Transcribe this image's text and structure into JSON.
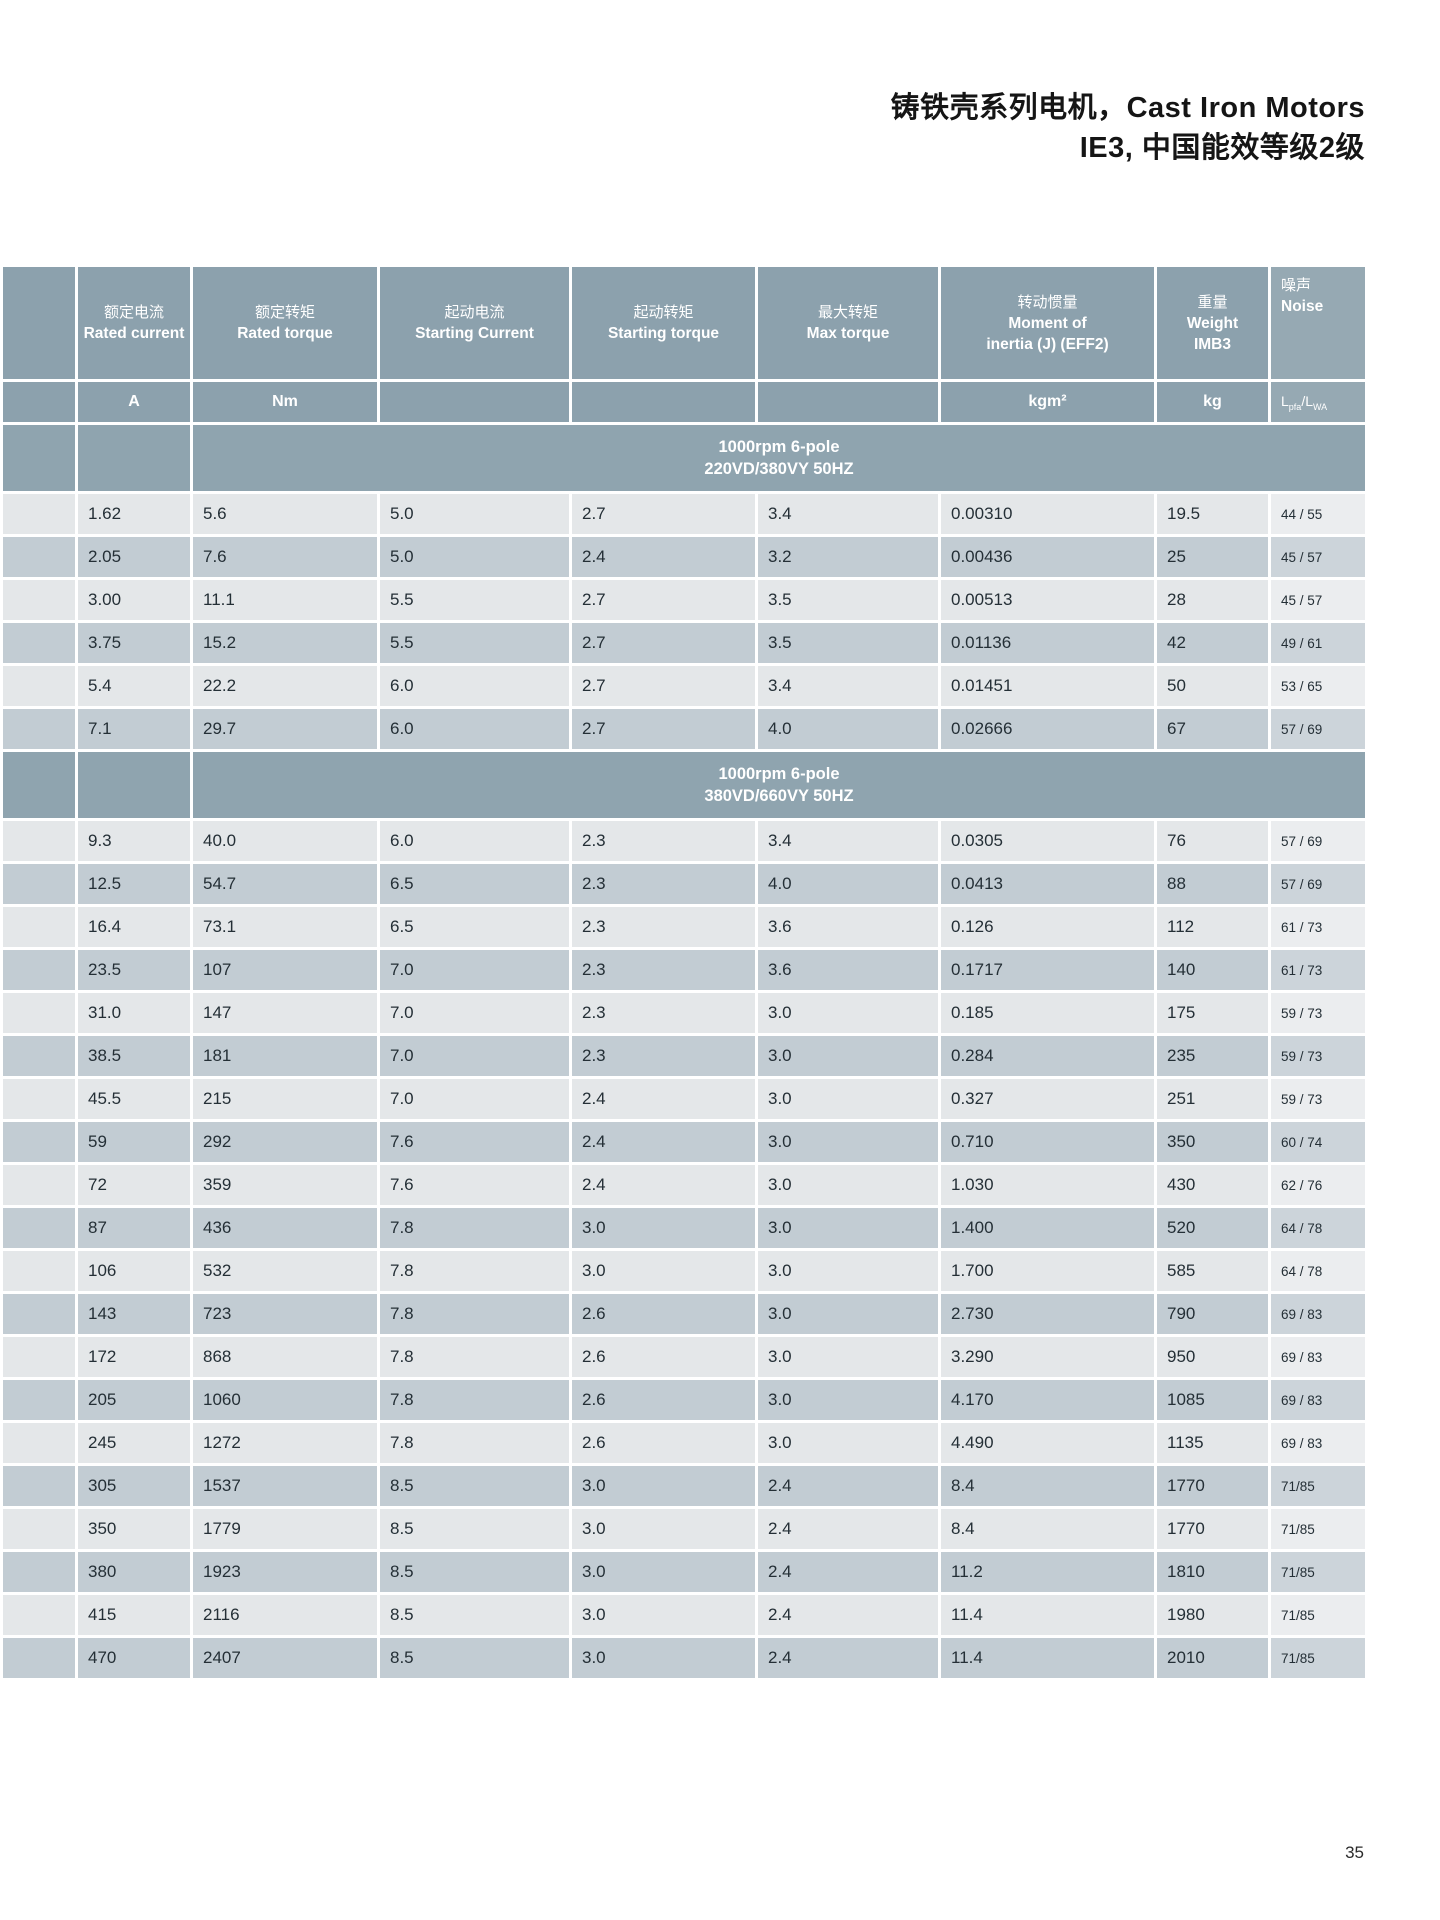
{
  "title": {
    "line1": "铸铁壳系列电机，Cast Iron Motors",
    "line2": "IE3, 中国能效等级2级"
  },
  "page_number": "35",
  "colors": {
    "header_bg": "#8CA1AD",
    "noise_header_bg": "#96A9B3",
    "section_band_bg": "#8FA4AF",
    "row_light": "#E4E7E9",
    "row_dark": "#C2CCD3",
    "text_dark": "#242F36",
    "header_text": "#FFFFFF"
  },
  "table": {
    "columns": [
      {
        "key": "frame",
        "zh": "",
        "en": "",
        "unit": ""
      },
      {
        "key": "rated-current",
        "zh": "额定电流",
        "en": "Rated current",
        "unit": "A"
      },
      {
        "key": "rated-torque",
        "zh": "额定转矩",
        "en": "Rated torque",
        "unit": "Nm"
      },
      {
        "key": "starting-current",
        "zh": "起动电流",
        "en": "Starting Current",
        "unit": ""
      },
      {
        "key": "starting-torque",
        "zh": "起动转矩",
        "en": "Starting torque",
        "unit": ""
      },
      {
        "key": "max-torque",
        "zh": "最大转矩",
        "en": "Max torque",
        "unit": ""
      },
      {
        "key": "moment-of-inertia",
        "zh": "转动惯量",
        "en": "Moment of",
        "en2": "inertia (J) (EFF2)",
        "unit": "kgm²"
      },
      {
        "key": "weight",
        "zh": "重量",
        "en": "Weight",
        "en2": "IMB3",
        "unit": "kg"
      },
      {
        "key": "noise",
        "zh": "噪声",
        "en": "Noise",
        "unit_parts": {
          "a": "L",
          "a_sub": "pfa",
          "slash": "/",
          "b": "L",
          "b_sub": "WA"
        }
      }
    ],
    "sections": [
      {
        "header_line1": "1000rpm  6-pole",
        "header_line2": "220VD/380VY  50HZ",
        "rows": [
          [
            "1.62",
            "5.6",
            "5.0",
            "2.7",
            "3.4",
            "0.00310",
            "19.5",
            "44 / 55"
          ],
          [
            "2.05",
            "7.6",
            "5.0",
            "2.4",
            "3.2",
            "0.00436",
            "25",
            "45 / 57"
          ],
          [
            "3.00",
            "11.1",
            "5.5",
            "2.7",
            "3.5",
            "0.00513",
            "28",
            "45 / 57"
          ],
          [
            "3.75",
            "15.2",
            "5.5",
            "2.7",
            "3.5",
            "0.01136",
            "42",
            "49 / 61"
          ],
          [
            "5.4",
            "22.2",
            "6.0",
            "2.7",
            "3.4",
            "0.01451",
            "50",
            "53 / 65"
          ],
          [
            "7.1",
            "29.7",
            "6.0",
            "2.7",
            "4.0",
            "0.02666",
            "67",
            "57 / 69"
          ]
        ]
      },
      {
        "header_line1": "1000rpm  6-pole",
        "header_line2": "380VD/660VY  50HZ",
        "rows": [
          [
            "9.3",
            "40.0",
            "6.0",
            "2.3",
            "3.4",
            "0.0305",
            "76",
            "57 / 69"
          ],
          [
            "12.5",
            "54.7",
            "6.5",
            "2.3",
            "4.0",
            "0.0413",
            "88",
            "57 / 69"
          ],
          [
            "16.4",
            "73.1",
            "6.5",
            "2.3",
            "3.6",
            "0.126",
            "112",
            "61 / 73"
          ],
          [
            "23.5",
            "107",
            "7.0",
            "2.3",
            "3.6",
            "0.1717",
            "140",
            "61 / 73"
          ],
          [
            "31.0",
            "147",
            "7.0",
            "2.3",
            "3.0",
            "0.185",
            "175",
            "59 / 73"
          ],
          [
            "38.5",
            "181",
            "7.0",
            "2.3",
            "3.0",
            "0.284",
            "235",
            "59 / 73"
          ],
          [
            "45.5",
            "215",
            "7.0",
            "2.4",
            "3.0",
            "0.327",
            "251",
            "59 / 73"
          ],
          [
            "59",
            "292",
            "7.6",
            "2.4",
            "3.0",
            "0.710",
            "350",
            "60 / 74"
          ],
          [
            "72",
            "359",
            "7.6",
            "2.4",
            "3.0",
            "1.030",
            "430",
            "62 / 76"
          ],
          [
            "87",
            "436",
            "7.8",
            "3.0",
            "3.0",
            "1.400",
            "520",
            "64 / 78"
          ],
          [
            "106",
            "532",
            "7.8",
            "3.0",
            "3.0",
            "1.700",
            "585",
            "64 / 78"
          ],
          [
            "143",
            "723",
            "7.8",
            "2.6",
            "3.0",
            "2.730",
            "790",
            "69 / 83"
          ],
          [
            "172",
            "868",
            "7.8",
            "2.6",
            "3.0",
            "3.290",
            "950",
            "69 / 83"
          ],
          [
            "205",
            "1060",
            "7.8",
            "2.6",
            "3.0",
            "4.170",
            "1085",
            "69 / 83"
          ],
          [
            "245",
            "1272",
            "7.8",
            "2.6",
            "3.0",
            "4.490",
            "1135",
            "69 / 83"
          ],
          [
            "305",
            "1537",
            "8.5",
            "3.0",
            "2.4",
            "8.4",
            "1770",
            "71/85"
          ],
          [
            "350",
            "1779",
            "8.5",
            "3.0",
            "2.4",
            "8.4",
            "1770",
            "71/85"
          ],
          [
            "380",
            "1923",
            "8.5",
            "3.0",
            "2.4",
            "11.2",
            "1810",
            "71/85"
          ],
          [
            "415",
            "2116",
            "8.5",
            "3.0",
            "2.4",
            "11.4",
            "1980",
            "71/85"
          ],
          [
            "470",
            "2407",
            "8.5",
            "3.0",
            "2.4",
            "11.4",
            "2010",
            "71/85"
          ]
        ]
      }
    ]
  }
}
